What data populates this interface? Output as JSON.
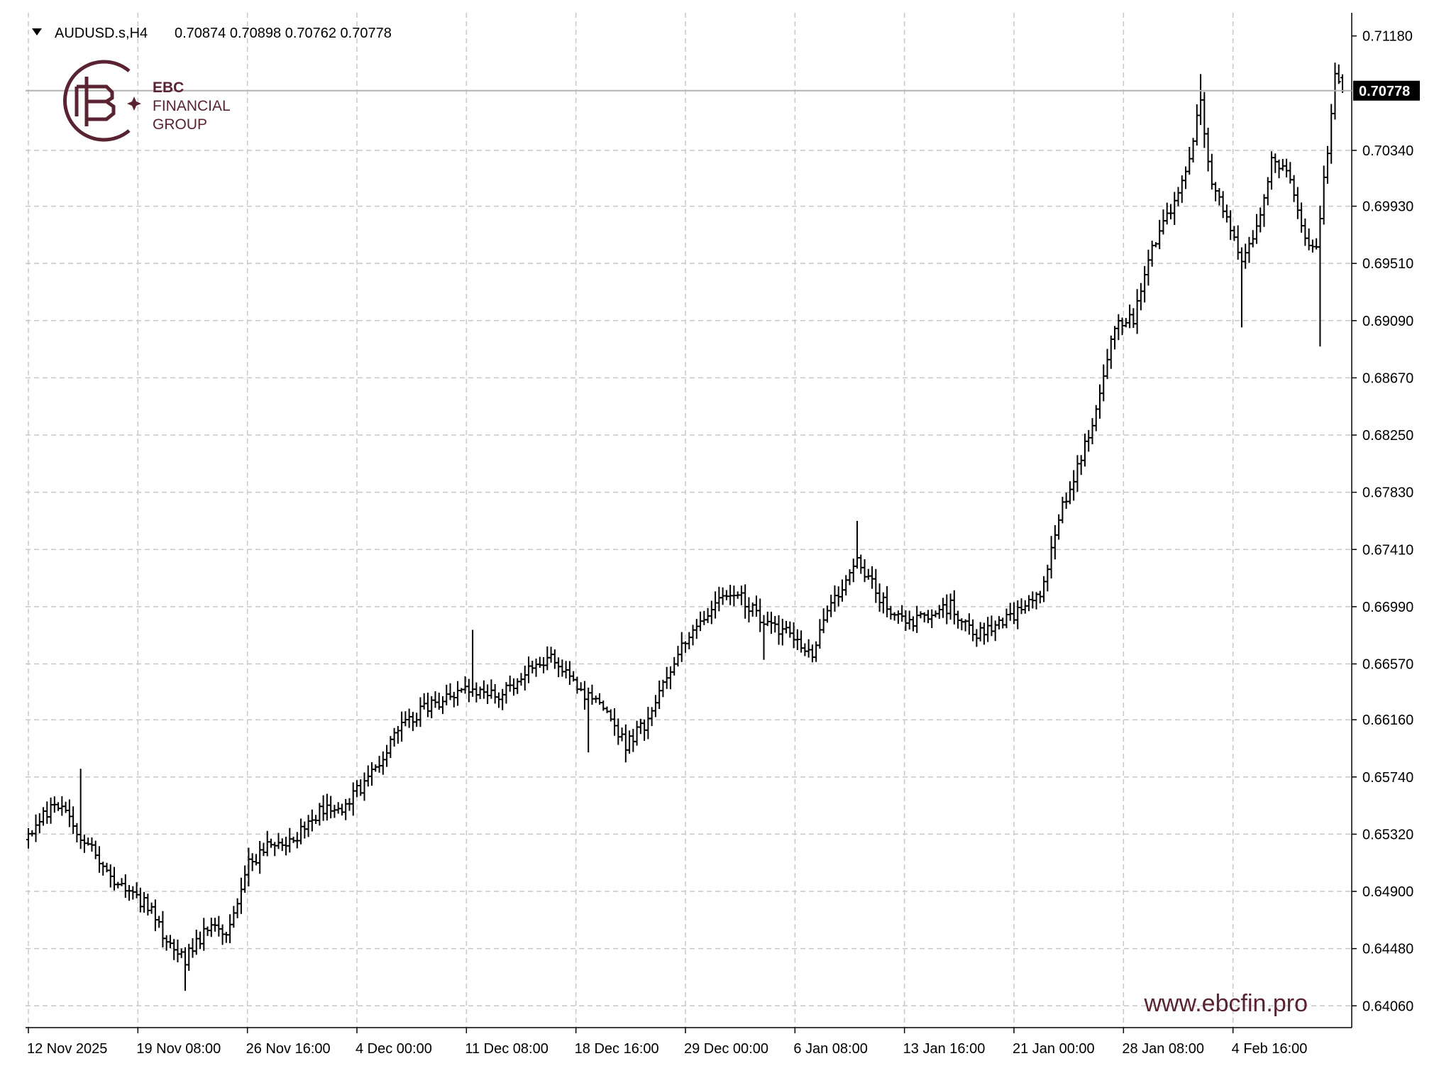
{
  "header": {
    "symbol_label": "AUDUSD.s,H4",
    "ohlc_label": "0.70874 0.70898 0.70762 0.70778"
  },
  "logo": {
    "line1": "EBC",
    "line2": "FINANCIAL",
    "line3": "GROUP"
  },
  "watermark": {
    "url": "www.ebcfin.pro"
  },
  "colors": {
    "background": "#ffffff",
    "grid": "#c8c8c8",
    "bars": "#000000",
    "axis": "#000000",
    "brand": "#5a2332",
    "price_label_bg": "#000000",
    "price_label_text": "#ffffff"
  },
  "icons": {
    "dropdown": "triangle-down-icon",
    "logo": "ebc-monogram-icon"
  },
  "chart_data": {
    "type": "ohlc",
    "title": "AUDUSD.s,H4",
    "symbol": "AUDUSD.s",
    "timeframe": "H4",
    "last": {
      "open": 0.70874,
      "high": 0.70898,
      "low": 0.70762,
      "close": 0.70778
    },
    "current_price_label": "0.70778",
    "ylim": [
      0.639,
      0.7135
    ],
    "y_ticks": [
      "0.71180",
      "0.70340",
      "0.69930",
      "0.69510",
      "0.69090",
      "0.68670",
      "0.68250",
      "0.67830",
      "0.67410",
      "0.66990",
      "0.66570",
      "0.66160",
      "0.65740",
      "0.65320",
      "0.64900",
      "0.64480",
      "0.64060"
    ],
    "x_ticks": [
      "12 Nov 2025",
      "19 Nov 08:00",
      "26 Nov 16:00",
      "4 Dec 00:00",
      "11 Dec 08:00",
      "18 Dec 16:00",
      "29 Dec 00:00",
      "6 Jan 08:00",
      "13 Jan 16:00",
      "21 Jan 00:00",
      "28 Jan 08:00",
      "4 Feb 16:00"
    ],
    "grid": true,
    "bar_count": 353,
    "anchors": [
      [
        0,
        0.6528
      ],
      [
        8,
        0.6555
      ],
      [
        15,
        0.6532
      ],
      [
        22,
        0.6504
      ],
      [
        28,
        0.6488
      ],
      [
        33,
        0.648
      ],
      [
        38,
        0.6452
      ],
      [
        43,
        0.644
      ],
      [
        49,
        0.6463
      ],
      [
        55,
        0.6462
      ],
      [
        60,
        0.651
      ],
      [
        66,
        0.6525
      ],
      [
        72,
        0.6529
      ],
      [
        79,
        0.6548
      ],
      [
        85,
        0.6552
      ],
      [
        92,
        0.6572
      ],
      [
        99,
        0.6605
      ],
      [
        106,
        0.6622
      ],
      [
        113,
        0.6632
      ],
      [
        120,
        0.6639
      ],
      [
        127,
        0.6634
      ],
      [
        134,
        0.665
      ],
      [
        141,
        0.6663
      ],
      [
        148,
        0.664
      ],
      [
        155,
        0.6623
      ],
      [
        161,
        0.6598
      ],
      [
        167,
        0.6615
      ],
      [
        173,
        0.6655
      ],
      [
        180,
        0.6688
      ],
      [
        186,
        0.6702
      ],
      [
        192,
        0.6705
      ],
      [
        198,
        0.6688
      ],
      [
        204,
        0.668
      ],
      [
        211,
        0.6665
      ],
      [
        217,
        0.6705
      ],
      [
        223,
        0.6735
      ],
      [
        229,
        0.6705
      ],
      [
        236,
        0.6688
      ],
      [
        242,
        0.669
      ],
      [
        248,
        0.67
      ],
      [
        254,
        0.6678
      ],
      [
        260,
        0.6685
      ],
      [
        266,
        0.6695
      ],
      [
        272,
        0.6708
      ],
      [
        277,
        0.6765
      ],
      [
        282,
        0.68
      ],
      [
        287,
        0.6845
      ],
      [
        292,
        0.6905
      ],
      [
        297,
        0.691
      ],
      [
        302,
        0.696
      ],
      [
        306,
        0.6985
      ],
      [
        311,
        0.7018
      ],
      [
        315,
        0.7068
      ],
      [
        318,
        0.701
      ],
      [
        322,
        0.6985
      ],
      [
        326,
        0.695
      ],
      [
        330,
        0.6975
      ],
      [
        334,
        0.7025
      ],
      [
        338,
        0.702
      ],
      [
        342,
        0.6975
      ],
      [
        346,
        0.696
      ],
      [
        349,
        0.7035
      ],
      [
        351,
        0.709
      ],
      [
        353,
        0.70778
      ]
    ],
    "spike_highs": [
      [
        14,
        0.658
      ],
      [
        119,
        0.6682
      ],
      [
        222,
        0.6762
      ],
      [
        314,
        0.709
      ],
      [
        350,
        0.7095
      ]
    ],
    "spike_lows": [
      [
        42,
        0.6417
      ],
      [
        150,
        0.6592
      ],
      [
        197,
        0.666
      ],
      [
        325,
        0.6904
      ],
      [
        346,
        0.689
      ]
    ]
  }
}
